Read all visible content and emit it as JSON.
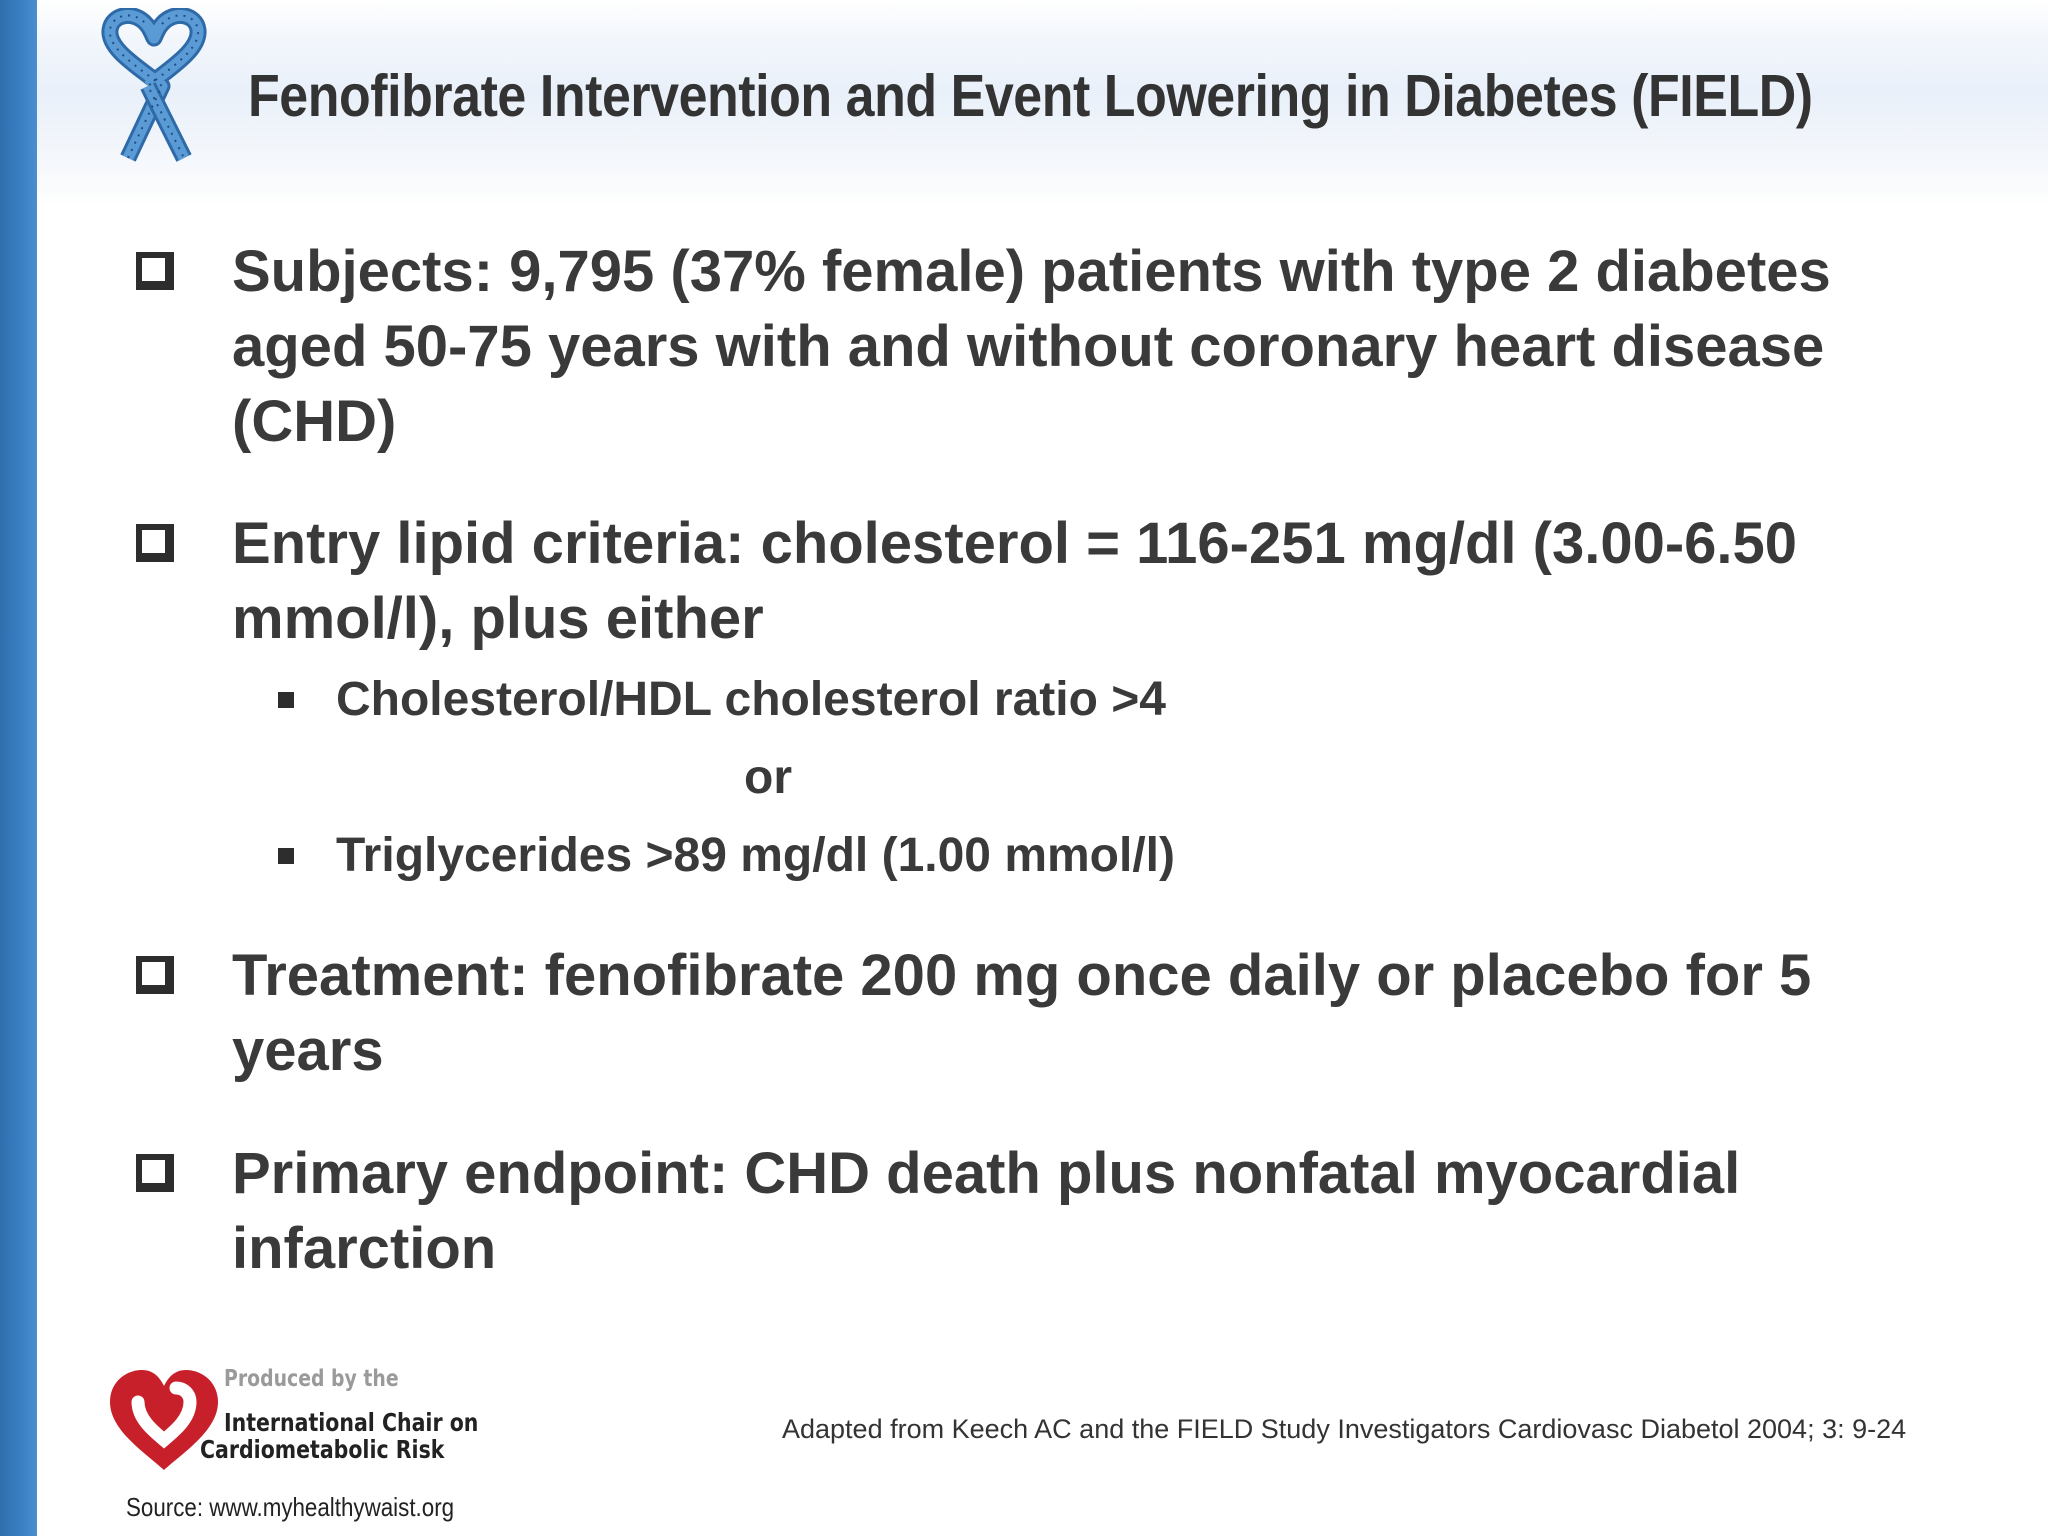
{
  "slide": {
    "title": "Fenofibrate Intervention and Event Lowering in Diabetes (FIELD)",
    "bullets": [
      {
        "text": "Subjects: 9,795 (37% female) patients with type 2 diabetes aged 50-75 years with and without coronary heart disease (CHD)"
      },
      {
        "text": "Entry lipid criteria: cholesterol = 116-251 mg/dl (3.00-6.50 mmol/l), plus either",
        "sub_items": [
          "Cholesterol/HDL cholesterol ratio >4",
          "Triglycerides >89 mg/dl (1.00 mmol/l)"
        ],
        "separator": "or"
      },
      {
        "text": "Treatment: fenofibrate 200 mg once daily or placebo for 5 years"
      },
      {
        "text": "Primary endpoint: CHD death plus nonfatal myocardial infarction"
      }
    ]
  },
  "footer": {
    "produced_by": "Produced by the",
    "org_line1": "International Chair on",
    "org_line2": "Cardiometabolic Risk",
    "source": "Source: www.myhealthywaist.org",
    "citation": "Adapted from Keech AC and the FIELD Study Investigators Cardiovasc Diabetol 2004; 3: 9-24"
  },
  "colors": {
    "accent_bar": "#3b80c4",
    "ribbon": "#3f82c0",
    "logo_heart": "#c8202b",
    "text": "#3a3a3a"
  },
  "icons": {
    "header": "awareness-ribbon-heart-icon",
    "footer": "heart-logo-icon",
    "bullet": "checkbox-icon",
    "sub_bullet": "square-bullet-icon"
  }
}
